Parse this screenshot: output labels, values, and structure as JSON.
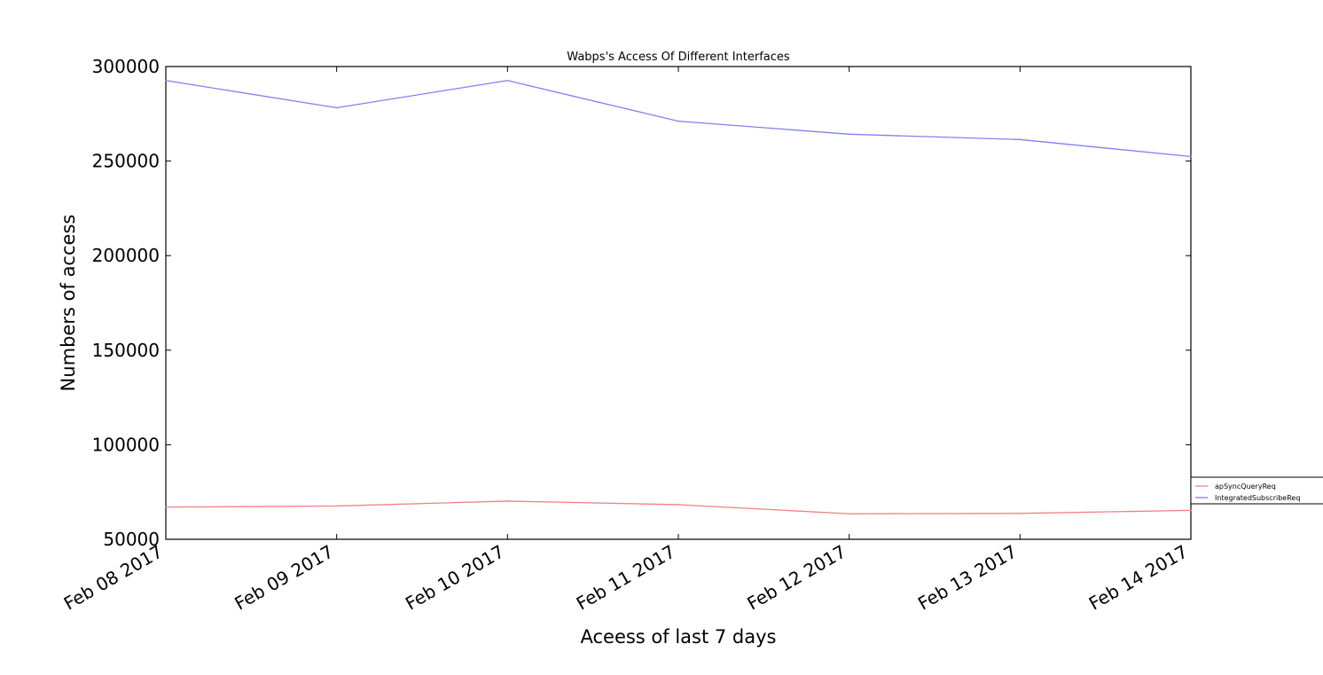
{
  "chart_data": {
    "type": "line",
    "title": "Wabps's Access Of Different Interfaces",
    "xlabel": "Aceess of last 7 days",
    "ylabel": "Numbers of access",
    "categories": [
      "Feb 08 2017",
      "Feb 09 2017",
      "Feb 10 2017",
      "Feb 11 2017",
      "Feb 12 2017",
      "Feb 13 2017",
      "Feb 14 2017"
    ],
    "series": [
      {
        "name": "apSyncQueryReq",
        "color": "#f08080",
        "values": [
          67000,
          67600,
          70200,
          68300,
          63500,
          63700,
          65300
        ]
      },
      {
        "name": "IntegratedSubscribeReq",
        "color": "#8080f0",
        "values": [
          292600,
          278200,
          292600,
          271100,
          264200,
          261400,
          252400
        ]
      }
    ],
    "ylim": [
      50000,
      300000
    ],
    "yticks": [
      50000,
      100000,
      150000,
      200000,
      250000,
      300000
    ],
    "ytick_labels": [
      "50000",
      "100000",
      "150000",
      "200000",
      "250000",
      "300000"
    ],
    "grid": false,
    "legend_position": "outside-right"
  }
}
